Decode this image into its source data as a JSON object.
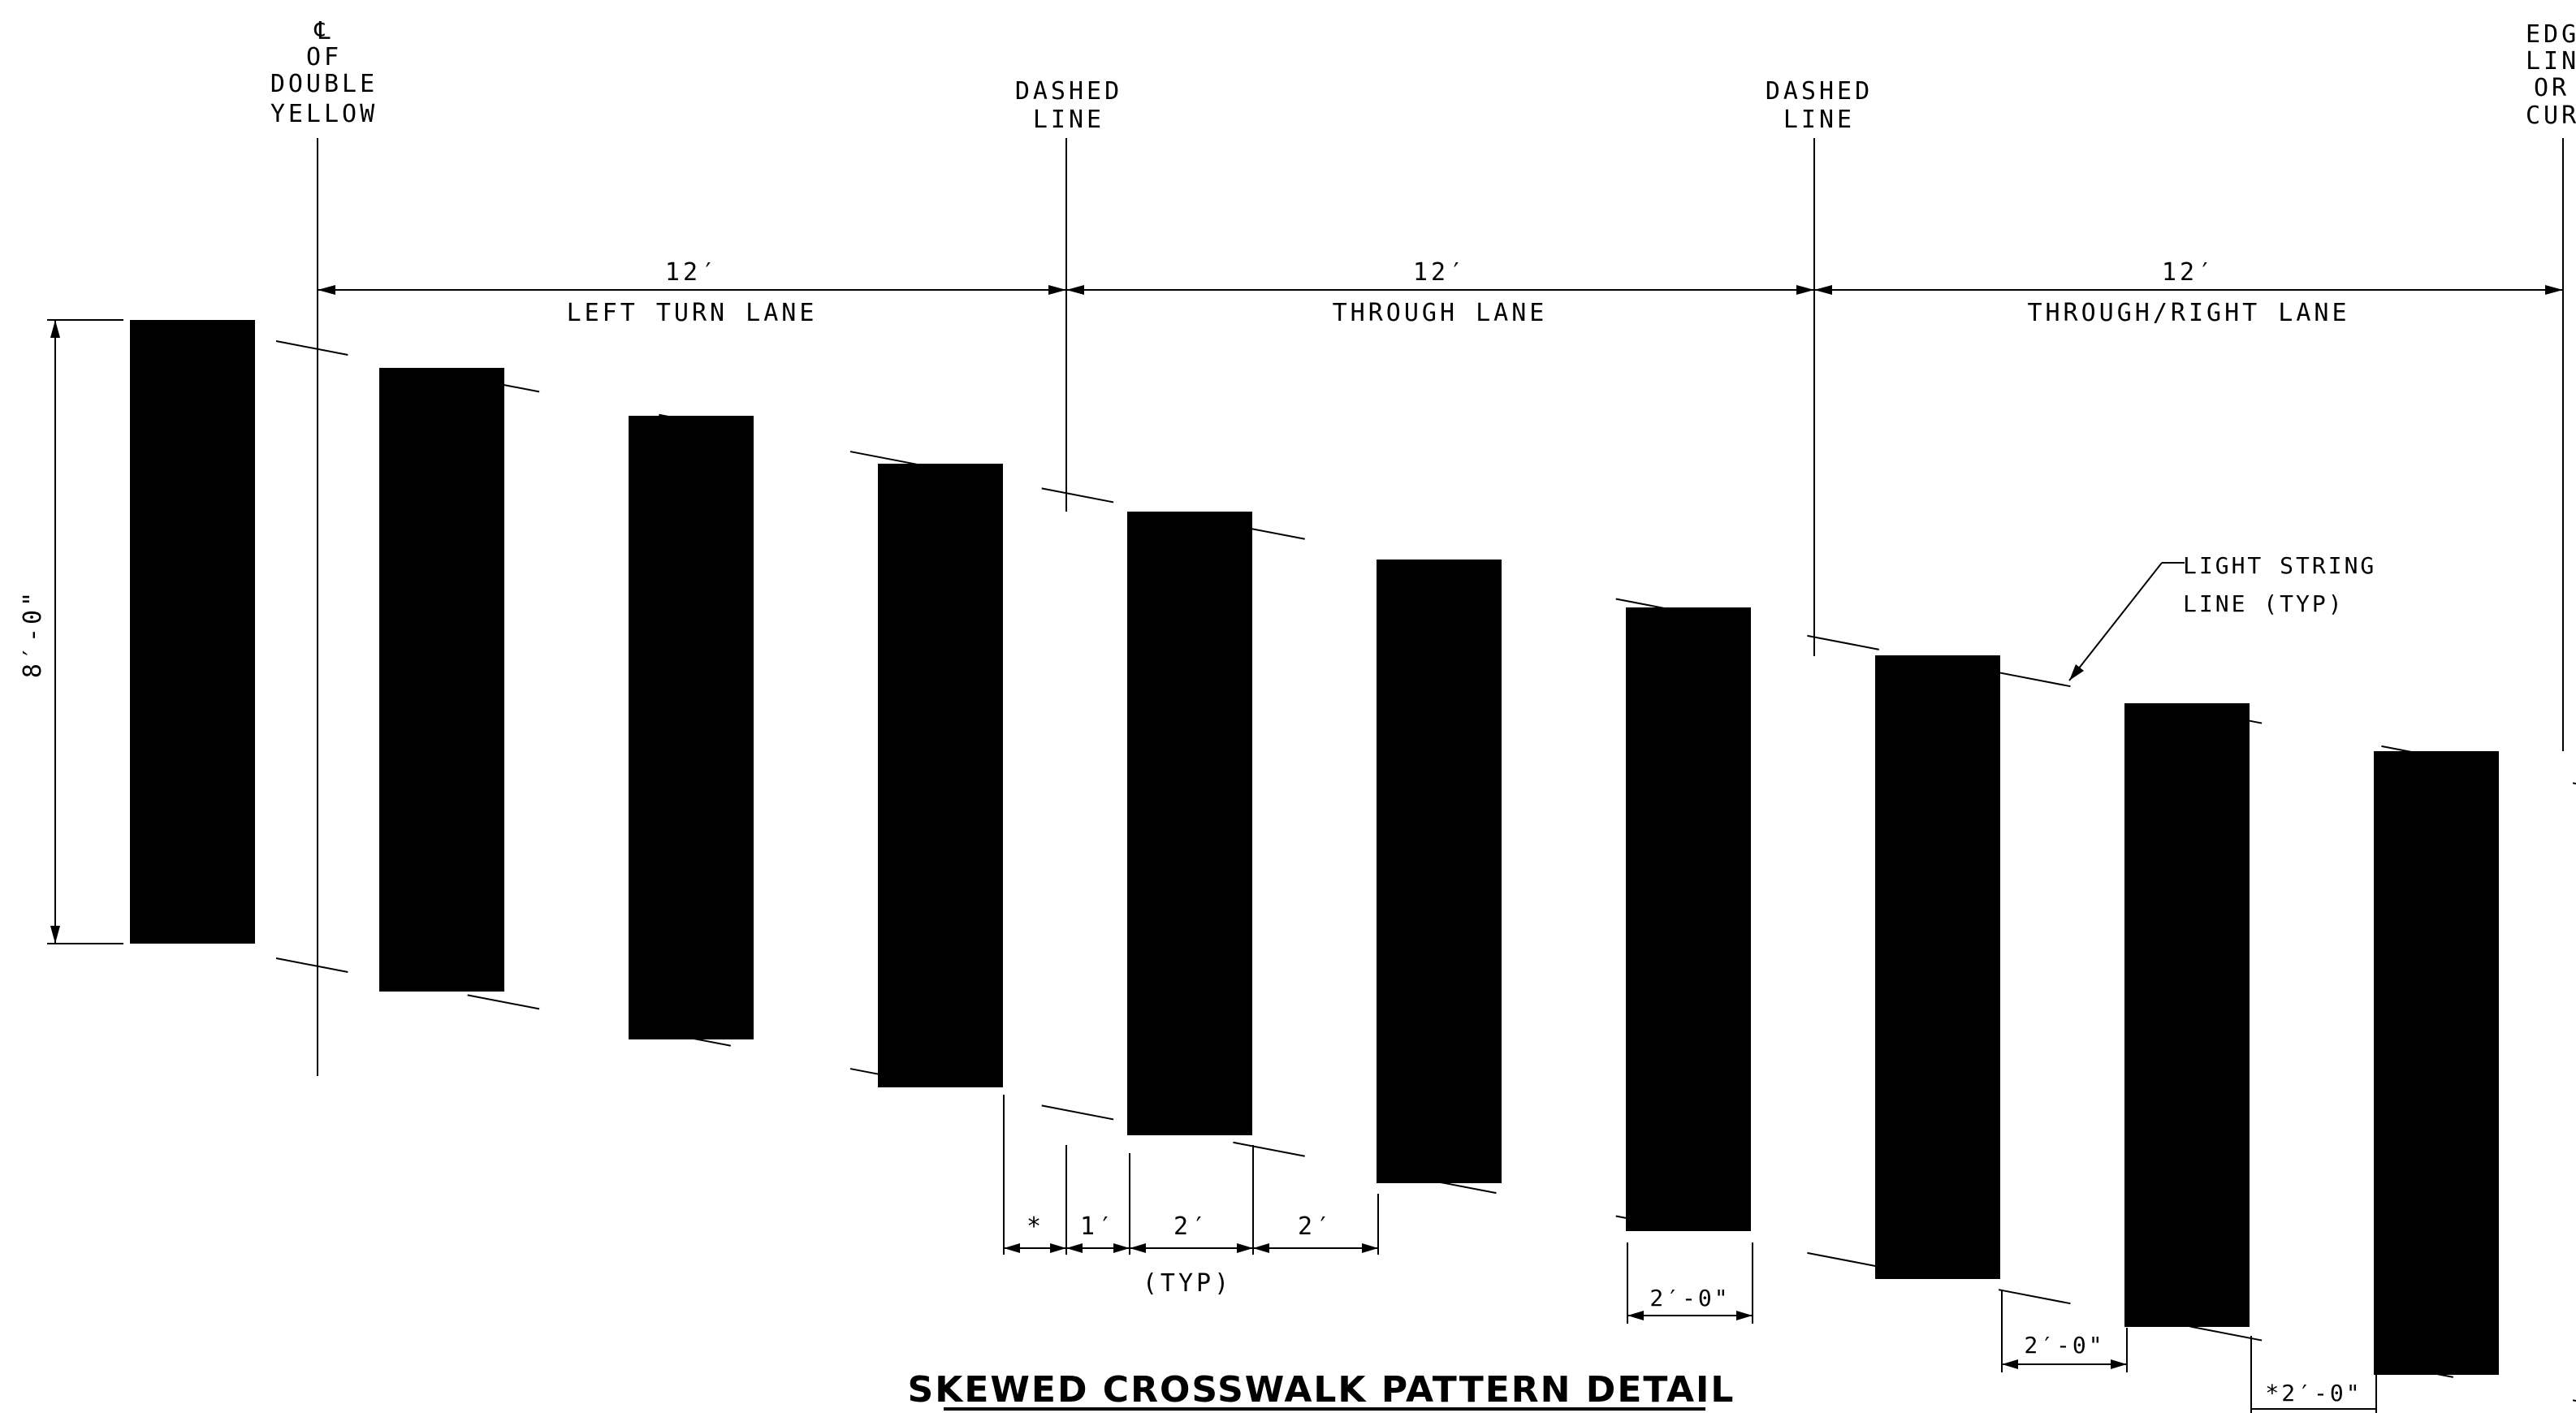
{
  "reference_lines": {
    "cl_symbol": "℄",
    "cl_of": "OF",
    "cl_double": "DOUBLE",
    "cl_yellow": "YELLOW",
    "dashed_1_a": "DASHED",
    "dashed_1_b": "LINE",
    "dashed_2_a": "DASHED",
    "dashed_2_b": "LINE",
    "edge_a": "EDGE",
    "edge_b": "LINE",
    "edge_c": "OR",
    "edge_d": "CURB"
  },
  "lanes": [
    {
      "width": "12′",
      "name": "LEFT TURN LANE"
    },
    {
      "width": "12′",
      "name": "THROUGH LANE"
    },
    {
      "width": "12′",
      "name": "THROUGH/RIGHT LANE"
    }
  ],
  "dimensions": {
    "bar_length": "8′-0\"",
    "star": "*",
    "one_ft": "1′",
    "two_ft_a": "2′",
    "two_ft_b": "2′",
    "typ": "(TYP)",
    "spacing_1": "2′-0\"",
    "spacing_2": "2′-0\"",
    "spacing_3": "*2′-0\""
  },
  "callout": {
    "line1": "LIGHT STRING",
    "line2": "LINE (TYP)"
  },
  "title": "SKEWED  CROSSWALK  PATTERN  DETAIL",
  "bars_count": 10,
  "colors": {
    "ink": "#000000",
    "background": "#ffffff"
  }
}
